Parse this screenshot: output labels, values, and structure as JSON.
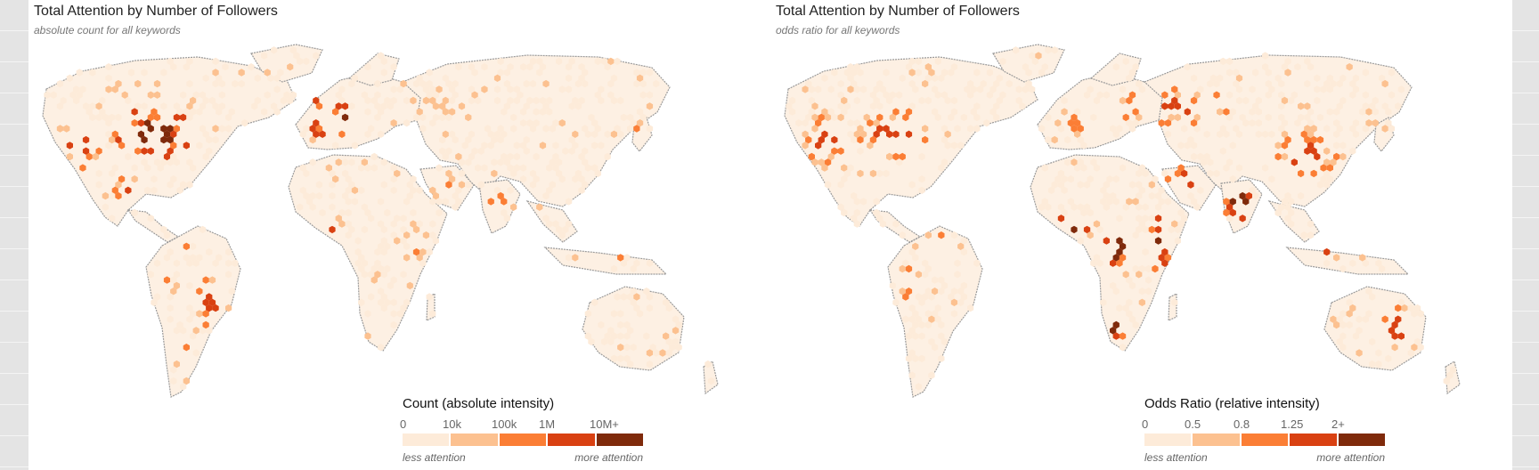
{
  "panels": [
    {
      "title": "Total Attention by Number of Followers",
      "subtitle": "absolute count for all keywords",
      "legend": {
        "title": "Count (absolute intensity)",
        "ticks": [
          "0",
          "10k",
          "100k",
          "1M",
          "10M+"
        ],
        "less_label": "less attention",
        "more_label": "more attention"
      },
      "hotspots": [
        {
          "region": "eastern-united-states",
          "level": 4
        },
        {
          "region": "western-europe",
          "level": 4
        },
        {
          "region": "western-united-states",
          "level": 3
        },
        {
          "region": "mexico",
          "level": 3
        },
        {
          "region": "southeast-brazil",
          "level": 3
        },
        {
          "region": "colombia-venezuela",
          "level": 2
        },
        {
          "region": "argentina-chile",
          "level": 2
        },
        {
          "region": "peru",
          "level": 2
        },
        {
          "region": "nigeria-ghana",
          "level": 3
        },
        {
          "region": "south-africa",
          "level": 3
        },
        {
          "region": "east-africa",
          "level": 2
        },
        {
          "region": "north-africa",
          "level": 1
        },
        {
          "region": "middle-east",
          "level": 2
        },
        {
          "region": "india",
          "level": 2
        },
        {
          "region": "indonesia-philippines",
          "level": 3
        },
        {
          "region": "japan-korea",
          "level": 2
        },
        {
          "region": "eastern-europe-russia",
          "level": 1
        },
        {
          "region": "australia-coast",
          "level": 2
        },
        {
          "region": "canada",
          "level": 1
        },
        {
          "region": "uk-ireland",
          "level": 4
        }
      ]
    },
    {
      "title": "Total Attention by Number of Followers",
      "subtitle": "odds ratio for all keywords",
      "legend": {
        "title": "Odds Ratio (relative intensity)",
        "ticks": [
          "0",
          "0.5",
          "0.8",
          "1.25",
          "2+"
        ],
        "less_label": "less attention",
        "more_label": "more attention"
      },
      "hotspots": [
        {
          "region": "india",
          "level": 4
        },
        {
          "region": "nigeria-ghana",
          "level": 4
        },
        {
          "region": "east-africa",
          "level": 4
        },
        {
          "region": "south-africa",
          "level": 4
        },
        {
          "region": "eastern-united-states",
          "level": 3
        },
        {
          "region": "western-united-states",
          "level": 3
        },
        {
          "region": "western-europe",
          "level": 2
        },
        {
          "region": "middle-east",
          "level": 3
        },
        {
          "region": "indonesia-philippines",
          "level": 3
        },
        {
          "region": "eastern-europe-russia",
          "level": 3
        },
        {
          "region": "mexico",
          "level": 2
        },
        {
          "region": "colombia-venezuela",
          "level": 3
        },
        {
          "region": "peru",
          "level": 3
        },
        {
          "region": "australia-coast",
          "level": 3
        },
        {
          "region": "uk-ireland",
          "level": 2
        },
        {
          "region": "japan-korea",
          "level": 2
        },
        {
          "region": "central-africa",
          "level": 4
        },
        {
          "region": "china",
          "level": 3
        }
      ]
    }
  ],
  "colors": {
    "level0": "#fdebd9",
    "level1": "#fcc190",
    "level2": "#fb7e35",
    "level3": "#d94112",
    "level4": "#7f2a0b",
    "land": "#fdf0e3",
    "coastline": "#9a9a9a"
  }
}
